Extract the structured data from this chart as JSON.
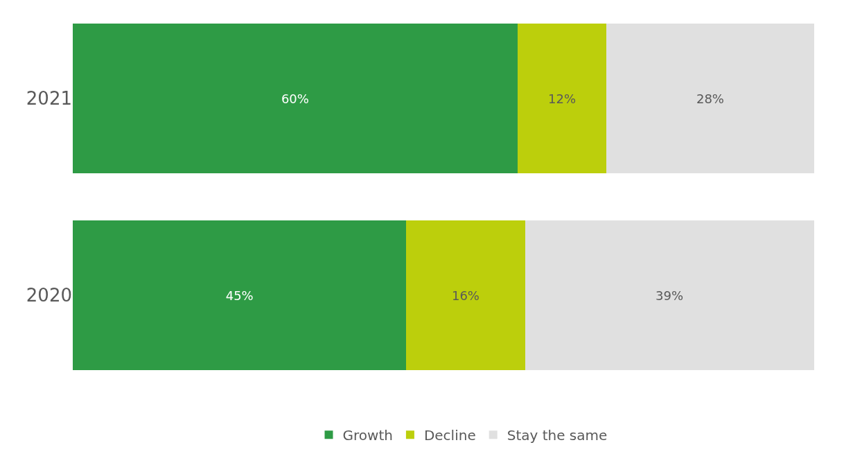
{
  "chart_data": {
    "type": "bar",
    "orientation": "horizontal",
    "stacked": true,
    "categories": [
      "2021",
      "2020"
    ],
    "series": [
      {
        "name": "Growth",
        "color": "#2e9b45",
        "values": [
          60,
          45
        ],
        "value_labels": [
          "60%",
          "45%"
        ]
      },
      {
        "name": "Decline",
        "color": "#bccf0c",
        "values": [
          12,
          16
        ],
        "value_labels": [
          "12%",
          "16%"
        ]
      },
      {
        "name": "Stay the same",
        "color": "#e0e0e0",
        "values": [
          28,
          39
        ],
        "value_labels": [
          "28%",
          "39%"
        ]
      }
    ],
    "legend": "bottom"
  }
}
